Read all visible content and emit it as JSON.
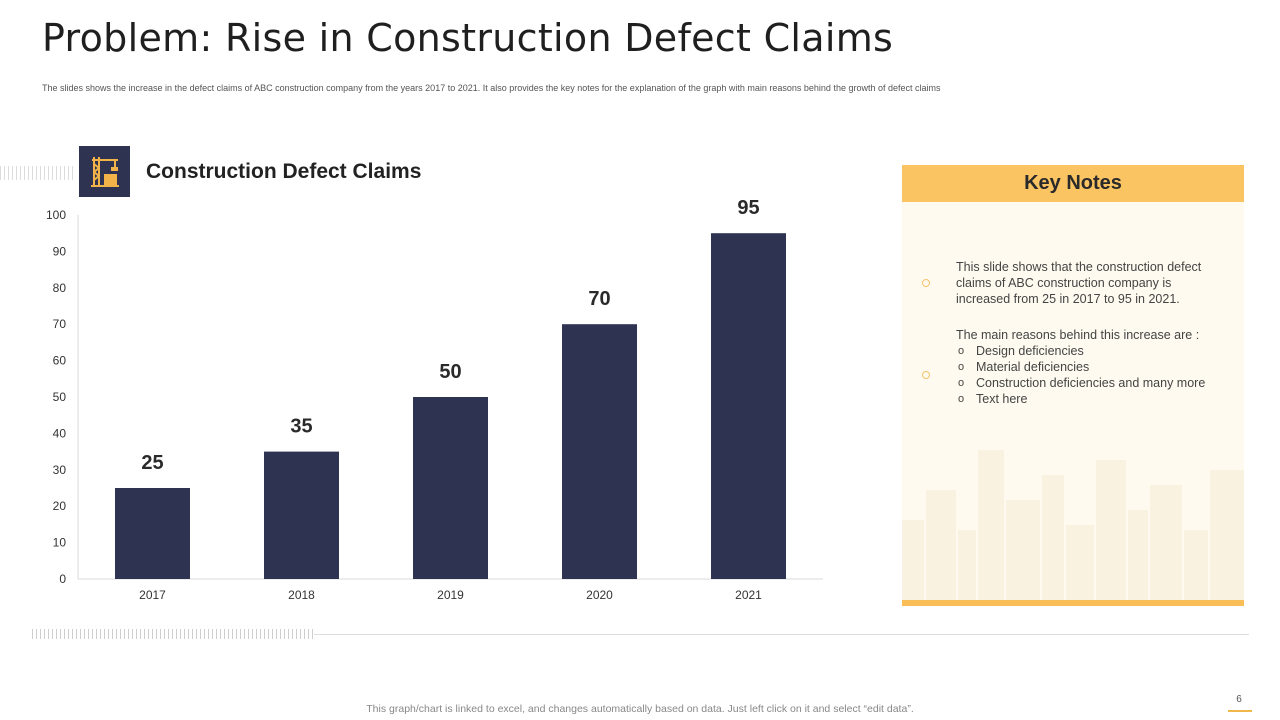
{
  "page": {
    "title": "Problem: Rise in Construction Defect Claims",
    "subtitle": "The slides shows the increase in the defect claims of ABC construction company from the years 2017 to 2021. It also provides the key notes for the explanation of the graph with main reasons behind the growth of defect claims",
    "footer_note": "This graph/chart is linked to excel, and changes automatically based on data. Just left click on it and select “edit data”.",
    "page_number": "6"
  },
  "chart_heading": {
    "label": "Construction Defect Claims",
    "icon": "crane-icon"
  },
  "chart_data": {
    "type": "bar",
    "title": "Construction Defect Claims",
    "categories": [
      "2017",
      "2018",
      "2019",
      "2020",
      "2021"
    ],
    "values": [
      25,
      35,
      50,
      70,
      95
    ],
    "data_labels": [
      "25",
      "35",
      "50",
      "70",
      "95"
    ],
    "xlabel": "",
    "ylabel": "",
    "ylim": [
      0,
      100
    ],
    "yticks": [
      "0",
      "10",
      "20",
      "30",
      "40",
      "50",
      "60",
      "70",
      "80",
      "90",
      "100"
    ],
    "grid": false,
    "legend": "none",
    "bar_color": "#2e3352"
  },
  "key_notes": {
    "title": "Key Notes",
    "note1": "This slide shows that the construction defect claims of ABC construction company is increased from 25 in 2017 to 95 in 2021.",
    "note2_intro": "The main reasons behind this increase are :",
    "reasons": [
      "Design deficiencies",
      "Material deficiencies",
      "Construction deficiencies and many more",
      "Text here"
    ]
  },
  "colors": {
    "bar": "#2e3352",
    "accent": "#fbc462",
    "panel_bg": "#fffaef"
  }
}
